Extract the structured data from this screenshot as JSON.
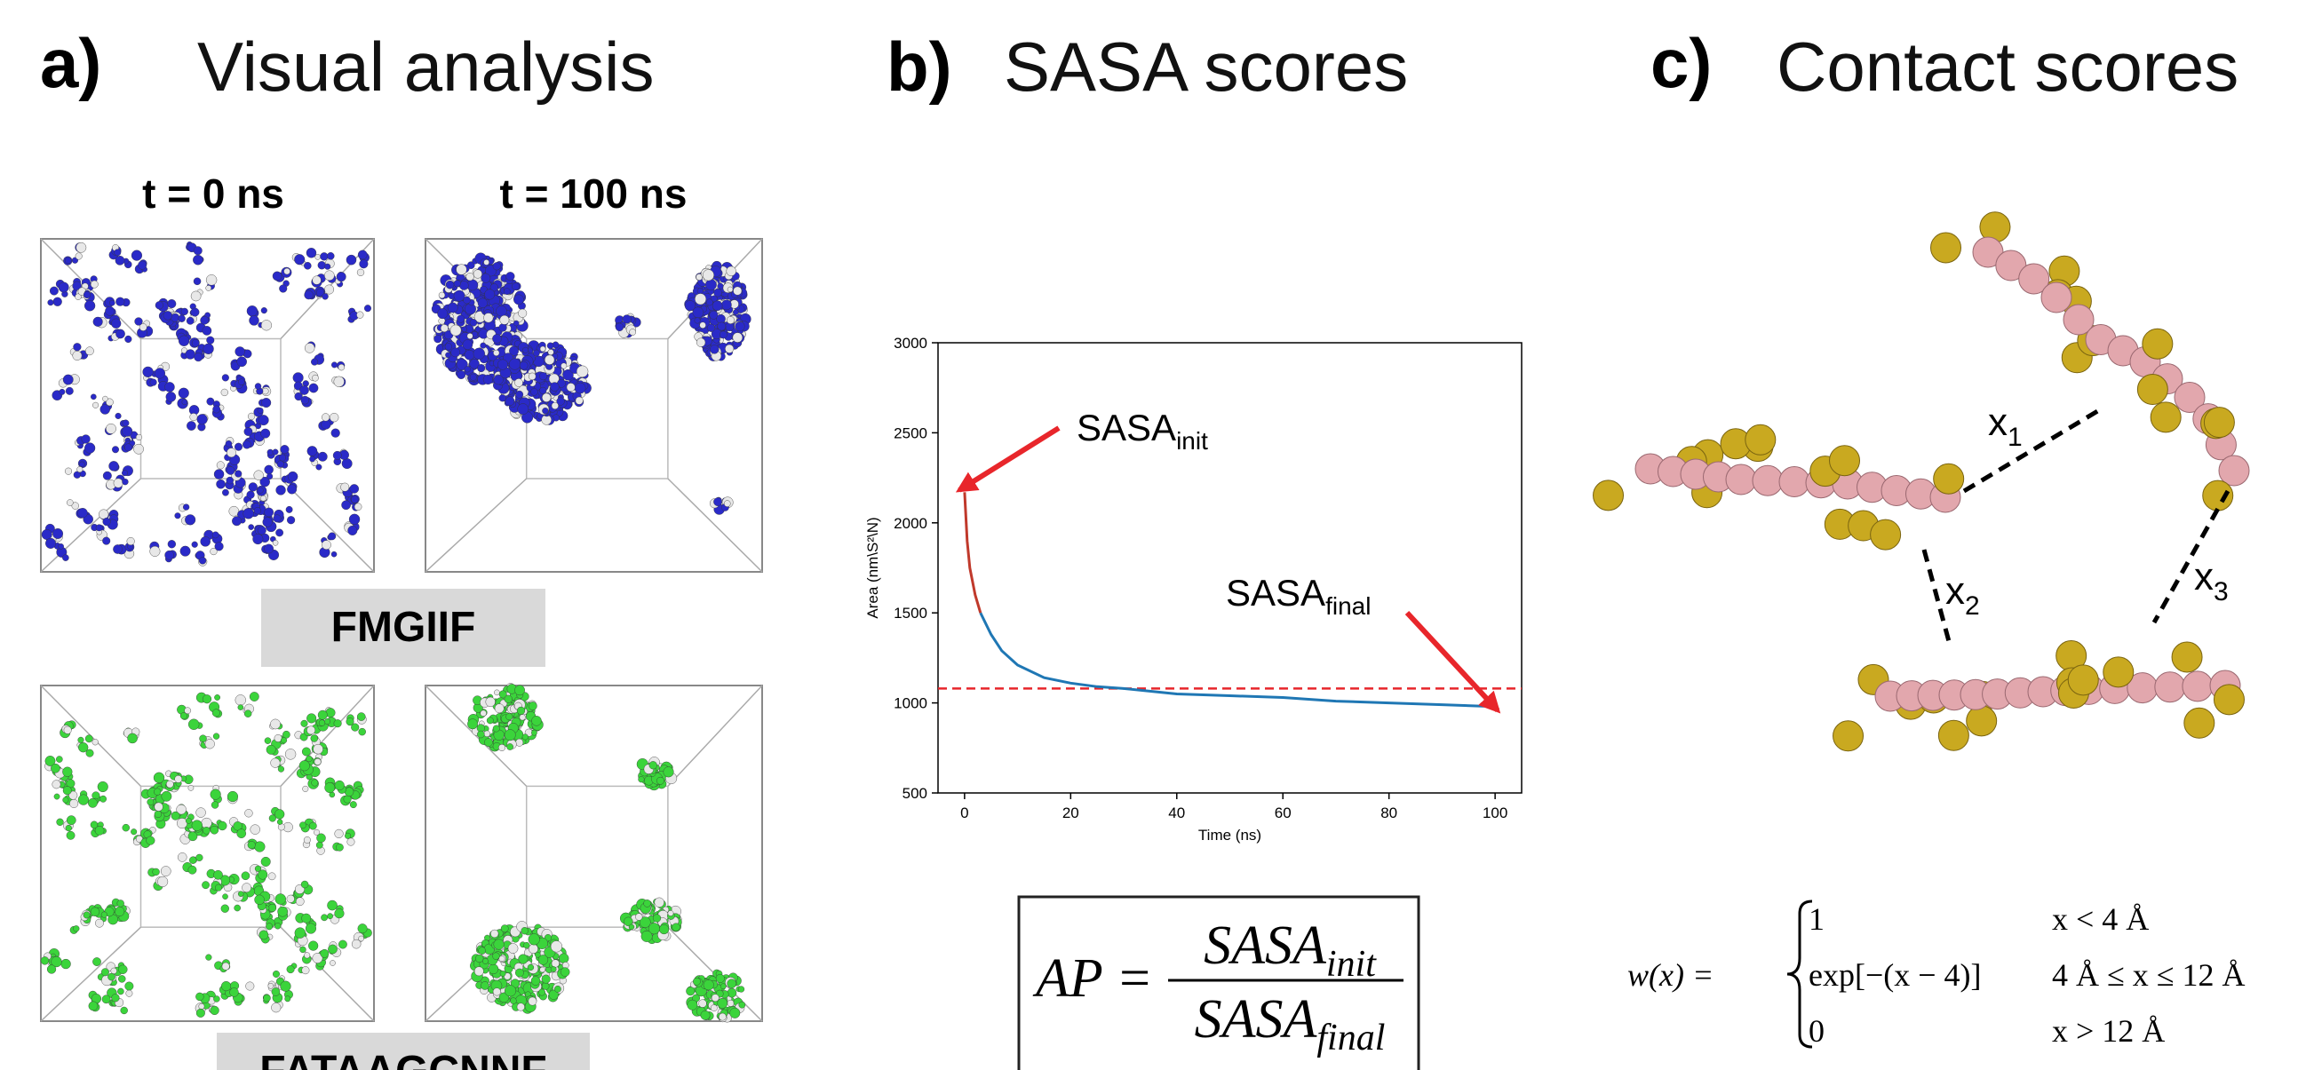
{
  "panels": [
    {
      "label": "a)",
      "title": "Visual analysis"
    },
    {
      "label": "b)",
      "title": "SASA scores"
    },
    {
      "label": "c)",
      "title": "Contact scores"
    }
  ],
  "visual": {
    "time_labels": [
      "t = 0 ns",
      "t = 100 ns"
    ],
    "peptides": [
      "FMGIIF",
      "FATAAGCNNF"
    ]
  },
  "chart_data": {
    "type": "line",
    "xlabel": "Time (ns)",
    "ylabel": "Area (nm\\S²\\N)",
    "xlim": [
      -5,
      105
    ],
    "ylim": [
      500,
      3000
    ],
    "xticks": [
      0,
      20,
      40,
      60,
      80,
      100
    ],
    "yticks": [
      500,
      1000,
      1500,
      2000,
      2500,
      3000
    ],
    "series": [
      {
        "color": "#1f77b4",
        "x": [
          3,
          5,
          7,
          10,
          15,
          20,
          25,
          30,
          40,
          50,
          60,
          70,
          80,
          90,
          100
        ],
        "values": [
          1500,
          1380,
          1290,
          1210,
          1140,
          1110,
          1090,
          1080,
          1050,
          1040,
          1030,
          1010,
          1000,
          990,
          980
        ]
      },
      {
        "color": "#c0392b",
        "x": [
          0,
          0.5,
          1,
          2,
          3
        ],
        "values": [
          2170,
          1900,
          1750,
          1600,
          1500
        ]
      }
    ],
    "hline": {
      "value": 1080,
      "color": "#e8262b"
    },
    "annotations": [
      {
        "text": "SASA",
        "sub": "init"
      },
      {
        "text": "SASA",
        "sub": "final"
      }
    ]
  },
  "formula_ap": {
    "lhs": "AP =",
    "num": "SASA",
    "num_sub": "init",
    "den": "SASA",
    "den_sub": "final"
  },
  "contact": {
    "distances": [
      {
        "text": "x",
        "sub": "1"
      },
      {
        "text": "x",
        "sub": "2"
      },
      {
        "text": "x",
        "sub": "3"
      }
    ],
    "formula": {
      "lhs": "w(x) =",
      "cases": [
        [
          "1",
          "x < 4 Å"
        ],
        [
          "exp[−(x − 4)]",
          "4 Å ≤ x ≤ 12 Å"
        ],
        [
          "0",
          "x > 12 Å"
        ]
      ]
    }
  }
}
